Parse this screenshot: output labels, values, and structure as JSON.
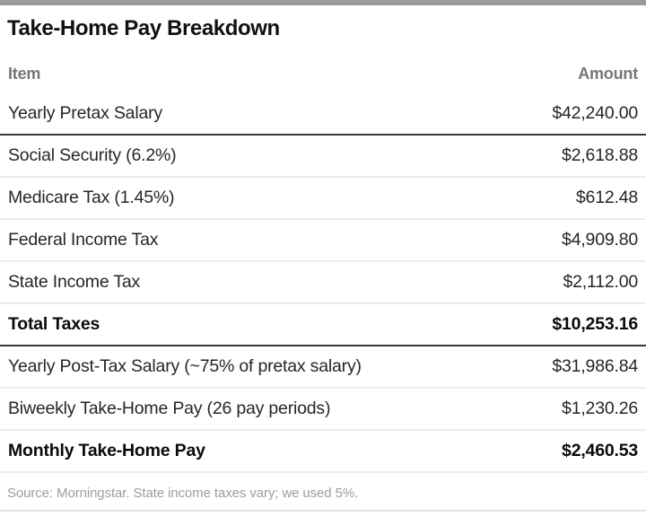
{
  "chart_data": {
    "type": "table",
    "title": "Take-Home Pay Breakdown",
    "columns": [
      "Item",
      "Amount"
    ],
    "rows": [
      {
        "item": "Yearly Pretax Salary",
        "amount": "$42,240.00",
        "bold": false
      },
      {
        "item": "Social Security (6.2%)",
        "amount": "$2,618.88",
        "bold": false
      },
      {
        "item": "Medicare Tax (1.45%)",
        "amount": "$612.48",
        "bold": false
      },
      {
        "item": "Federal Income Tax",
        "amount": "$4,909.80",
        "bold": false
      },
      {
        "item": "State Income Tax",
        "amount": "$2,112.00",
        "bold": false
      },
      {
        "item": "Total Taxes",
        "amount": "$10,253.16",
        "bold": true
      },
      {
        "item": "Yearly Post-Tax Salary (~75% of pretax salary)",
        "amount": "$31,986.84",
        "bold": false
      },
      {
        "item": "Biweekly Take-Home Pay (26 pay periods)",
        "amount": "$1,230.26",
        "bold": false
      },
      {
        "item": "Monthly Take-Home Pay",
        "amount": "$2,460.53",
        "bold": true
      }
    ],
    "source": "Source: Morningstar. State income taxes vary; we used 5%."
  },
  "colors": {
    "top_bar": "#9a9a9a",
    "title_text": "#111111",
    "header_text": "#767676",
    "row_text": "#262626",
    "dark_rule": "#3a3a3a",
    "light_rule": "#ececec",
    "source_text": "#9d9d9d",
    "background": "#ffffff"
  }
}
